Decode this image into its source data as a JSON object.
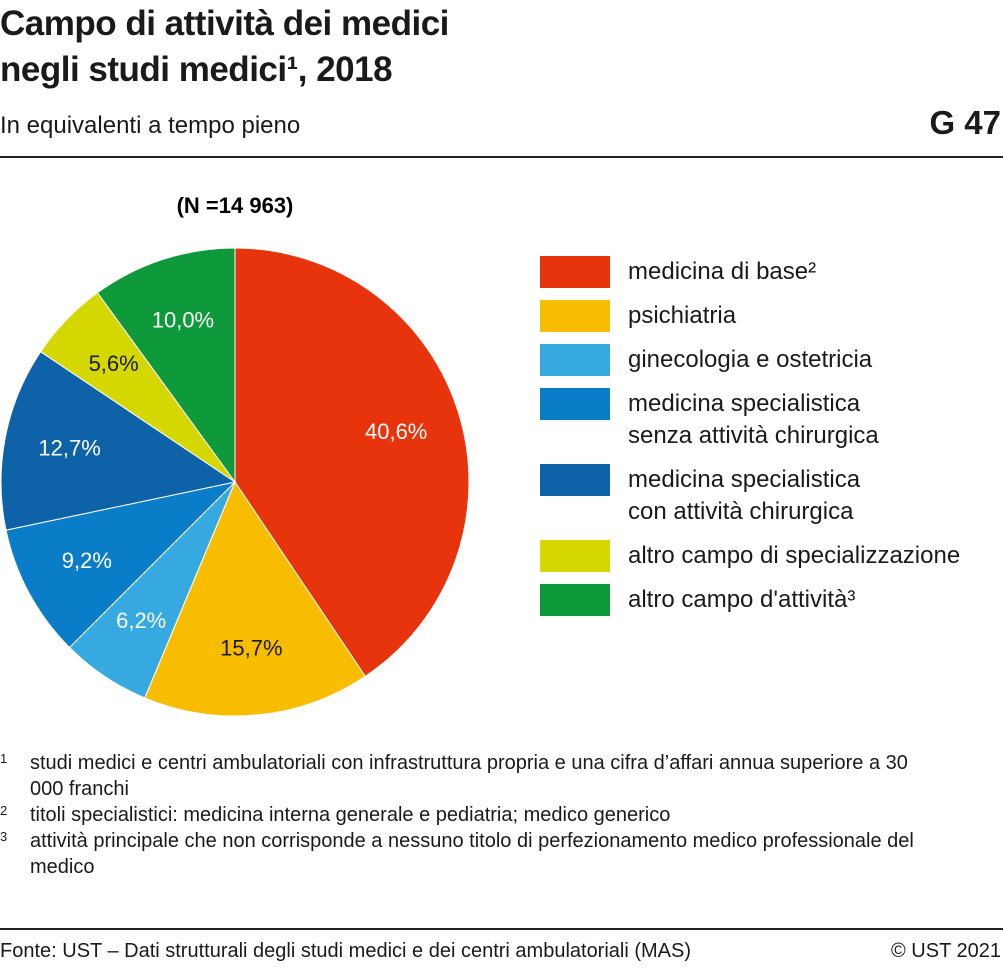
{
  "chart_data": {
    "type": "pie",
    "title": [
      "Campo di attività dei medici",
      "negli studi medici¹, 2018"
    ],
    "subtitle": "In equivalenti a tempo pieno",
    "code": "G 47",
    "note": "(N =14 963)",
    "categories": [
      "medicina di base²",
      "psichiatria",
      "ginecologia e ostetricia",
      "medicina specialistica\nsenza attività chirurgica",
      "medicina specialistica\ncon attività chirurgica",
      "altro campo di specializzazione",
      "altro campo d'attività³"
    ],
    "values": [
      40.6,
      15.7,
      6.2,
      9.2,
      12.7,
      5.6,
      10.0
    ],
    "value_labels": [
      "40,6%",
      "15,7%",
      "6,2%",
      "9,2%",
      "12,7%",
      "5,6%",
      "10,0%"
    ],
    "colors": [
      "#e8340c",
      "#f9bd00",
      "#36a9e1",
      "#0a7dc9",
      "#0d62a8",
      "#d4d800",
      "#0e9a3b"
    ]
  },
  "footnotes": [
    {
      "marker": "1",
      "text": "studi medici e centri ambulatoriali con infrastruttura propria e una cifra d’affari annua superiore a 30 000 franchi"
    },
    {
      "marker": "2",
      "text": "titoli specialistici: medicina interna generale e pediatria; medico generico"
    },
    {
      "marker": "3",
      "text": "attività principale che non corrisponde a nessuno titolo di perfezionamento medico professionale del medico"
    }
  ],
  "source": "Fonte: UST – Dati strutturali degli studi medici e dei centri ambulatoriali (MAS)",
  "copyright": "© UST 2021"
}
